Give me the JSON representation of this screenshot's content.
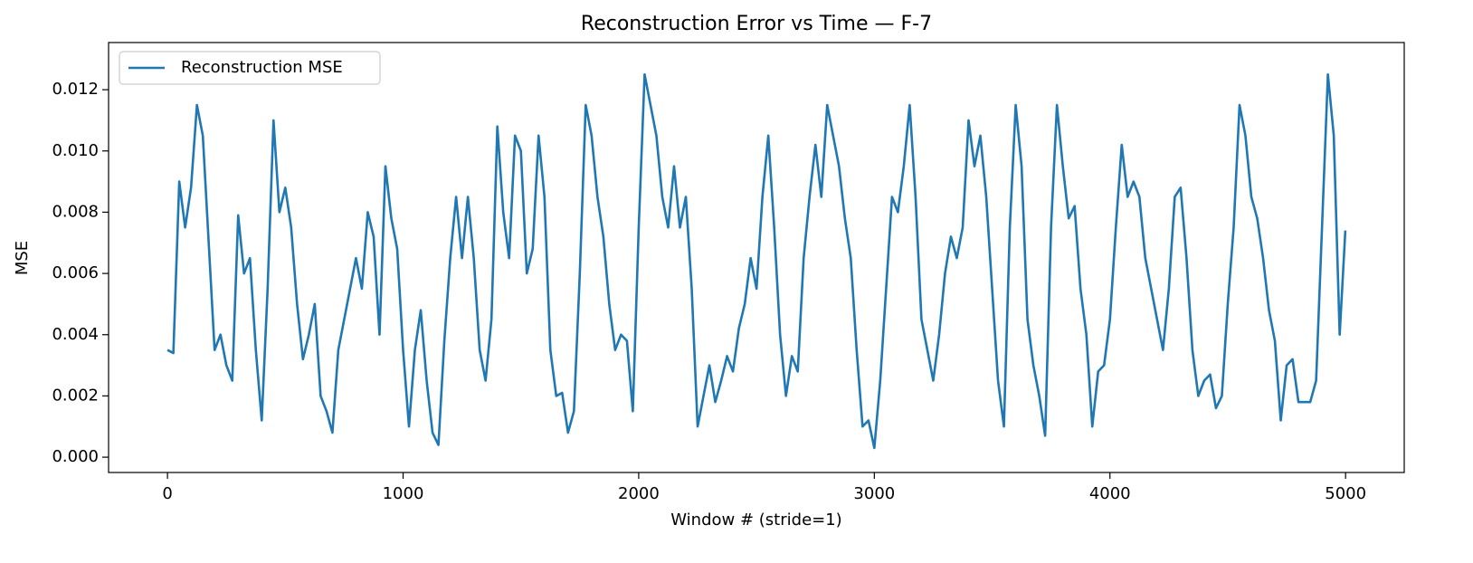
{
  "chart_data": {
    "type": "line",
    "title": "Reconstruction Error vs Time — F-7",
    "x_label": "Window # (stride=1)",
    "y_label": "MSE",
    "legend": "upper left",
    "x": [
      0,
      25,
      50,
      75,
      100,
      125,
      150,
      175,
      200,
      225,
      250,
      275,
      300,
      325,
      350,
      375,
      400,
      425,
      450,
      475,
      500,
      525,
      550,
      575,
      600,
      625,
      650,
      675,
      700,
      725,
      750,
      775,
      800,
      825,
      850,
      875,
      900,
      925,
      950,
      975,
      1000,
      1025,
      1050,
      1075,
      1100,
      1125,
      1150,
      1175,
      1200,
      1225,
      1250,
      1275,
      1300,
      1325,
      1350,
      1375,
      1400,
      1425,
      1450,
      1475,
      1500,
      1525,
      1550,
      1575,
      1600,
      1625,
      1650,
      1675,
      1700,
      1725,
      1750,
      1775,
      1800,
      1825,
      1850,
      1875,
      1900,
      1925,
      1950,
      1975,
      2000,
      2025,
      2050,
      2075,
      2100,
      2125,
      2150,
      2175,
      2200,
      2225,
      2250,
      2275,
      2300,
      2325,
      2350,
      2375,
      2400,
      2425,
      2450,
      2475,
      2500,
      2525,
      2550,
      2575,
      2600,
      2625,
      2650,
      2675,
      2700,
      2725,
      2750,
      2775,
      2800,
      2825,
      2850,
      2875,
      2900,
      2925,
      2950,
      2975,
      3000,
      3025,
      3050,
      3075,
      3100,
      3125,
      3150,
      3175,
      3200,
      3225,
      3250,
      3275,
      3300,
      3325,
      3350,
      3375,
      3400,
      3425,
      3450,
      3475,
      3500,
      3525,
      3550,
      3575,
      3600,
      3625,
      3650,
      3675,
      3700,
      3725,
      3750,
      3775,
      3800,
      3825,
      3850,
      3875,
      3900,
      3925,
      3950,
      3975,
      4000,
      4025,
      4050,
      4075,
      4100,
      4125,
      4150,
      4175,
      4200,
      4225,
      4250,
      4275,
      4300,
      4325,
      4350,
      4375,
      4400,
      4425,
      4450,
      4475,
      4500,
      4525,
      4550,
      4575,
      4600,
      4625,
      4650,
      4675,
      4700,
      4725,
      4750,
      4775,
      4800,
      4825,
      4850,
      4875,
      4900,
      4925,
      4950,
      4975,
      4999
    ],
    "series": [
      {
        "name": "Reconstruction MSE",
        "color": "#1f77b4",
        "values": [
          0.0035,
          0.0034,
          0.009,
          0.0075,
          0.0088,
          0.0115,
          0.0105,
          0.007,
          0.0035,
          0.004,
          0.003,
          0.0025,
          0.0079,
          0.006,
          0.0065,
          0.0035,
          0.0012,
          0.0055,
          0.011,
          0.008,
          0.0088,
          0.0075,
          0.005,
          0.0032,
          0.004,
          0.005,
          0.002,
          0.0015,
          0.0008,
          0.0035,
          0.0045,
          0.0055,
          0.0065,
          0.0055,
          0.008,
          0.0072,
          0.004,
          0.0095,
          0.0078,
          0.0068,
          0.0035,
          0.001,
          0.0035,
          0.0048,
          0.0025,
          0.0008,
          0.0004,
          0.0038,
          0.0065,
          0.0085,
          0.0065,
          0.0085,
          0.0065,
          0.0035,
          0.0025,
          0.0045,
          0.0108,
          0.008,
          0.0065,
          0.0105,
          0.01,
          0.006,
          0.0068,
          0.0105,
          0.0085,
          0.0035,
          0.002,
          0.0021,
          0.0008,
          0.0015,
          0.006,
          0.0115,
          0.0105,
          0.0085,
          0.0072,
          0.005,
          0.0035,
          0.004,
          0.0038,
          0.0015,
          0.0075,
          0.0125,
          0.0115,
          0.0105,
          0.0085,
          0.0075,
          0.0095,
          0.0075,
          0.0085,
          0.0055,
          0.001,
          0.002,
          0.003,
          0.0018,
          0.0025,
          0.0033,
          0.0028,
          0.0042,
          0.005,
          0.0065,
          0.0055,
          0.0085,
          0.0105,
          0.0075,
          0.004,
          0.002,
          0.0033,
          0.0028,
          0.0065,
          0.0085,
          0.0102,
          0.0085,
          0.0115,
          0.0105,
          0.0095,
          0.0078,
          0.0065,
          0.0035,
          0.001,
          0.0012,
          0.0003,
          0.0025,
          0.0055,
          0.0085,
          0.008,
          0.0095,
          0.0115,
          0.0085,
          0.0045,
          0.0035,
          0.0025,
          0.004,
          0.006,
          0.0072,
          0.0065,
          0.0075,
          0.011,
          0.0095,
          0.0105,
          0.0085,
          0.0055,
          0.0025,
          0.001,
          0.0075,
          0.0115,
          0.0095,
          0.0045,
          0.003,
          0.002,
          0.0007,
          0.0075,
          0.0115,
          0.0095,
          0.0078,
          0.0082,
          0.0055,
          0.004,
          0.001,
          0.0028,
          0.003,
          0.0045,
          0.0075,
          0.0102,
          0.0085,
          0.009,
          0.0085,
          0.0065,
          0.0055,
          0.0045,
          0.0035,
          0.0055,
          0.0085,
          0.0088,
          0.0065,
          0.0035,
          0.002,
          0.0025,
          0.0027,
          0.0016,
          0.002,
          0.005,
          0.0075,
          0.0115,
          0.0105,
          0.0085,
          0.0078,
          0.0065,
          0.0048,
          0.0038,
          0.0012,
          0.003,
          0.0032,
          0.0018,
          0.0018,
          0.0018,
          0.0025,
          0.0075,
          0.0125,
          0.0105,
          0.004,
          0.0074
        ]
      }
    ],
    "xlim": [
      -250,
      5249
    ],
    "ylim": [
      -0.0005,
      0.01354
    ],
    "xticks": [
      0,
      1000,
      2000,
      3000,
      4000,
      5000
    ],
    "yticks": [
      {
        "value": 0,
        "label": "0.000"
      },
      {
        "value": 0.002,
        "label": "0.002"
      },
      {
        "value": 0.004,
        "label": "0.004"
      },
      {
        "value": 0.006,
        "label": "0.006"
      },
      {
        "value": 0.008,
        "label": "0.008"
      },
      {
        "value": 0.01,
        "label": "0.010"
      },
      {
        "value": 0.012,
        "label": "0.012"
      }
    ]
  }
}
